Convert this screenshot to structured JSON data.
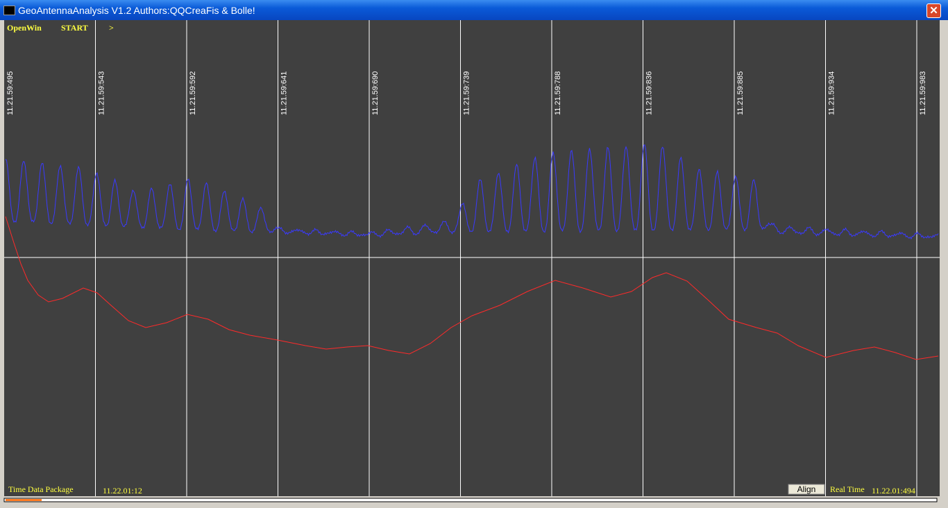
{
  "window": {
    "title": "GeoAntennaAnalysis V1.2 Authors:QQCreaFis & Bolle!"
  },
  "toolbar": [
    "OpenWin",
    "START",
    ">"
  ],
  "time_markers": [
    "11.21.59:495",
    "11.21.59:543",
    "11.21.59:592",
    "11.21.59:641",
    "11.21.59:690",
    "11.21.59:739",
    "11.21.59:788",
    "11.21.59:836",
    "11.21.59:885",
    "11.21.59:934",
    "11.21.59:983"
  ],
  "footer": {
    "package_label": "Time Data Package",
    "package_time": "11.22.01:12",
    "align_button": "Align",
    "realtime_label": "Real Time",
    "realtime_value": "11.22.01:494"
  }
}
